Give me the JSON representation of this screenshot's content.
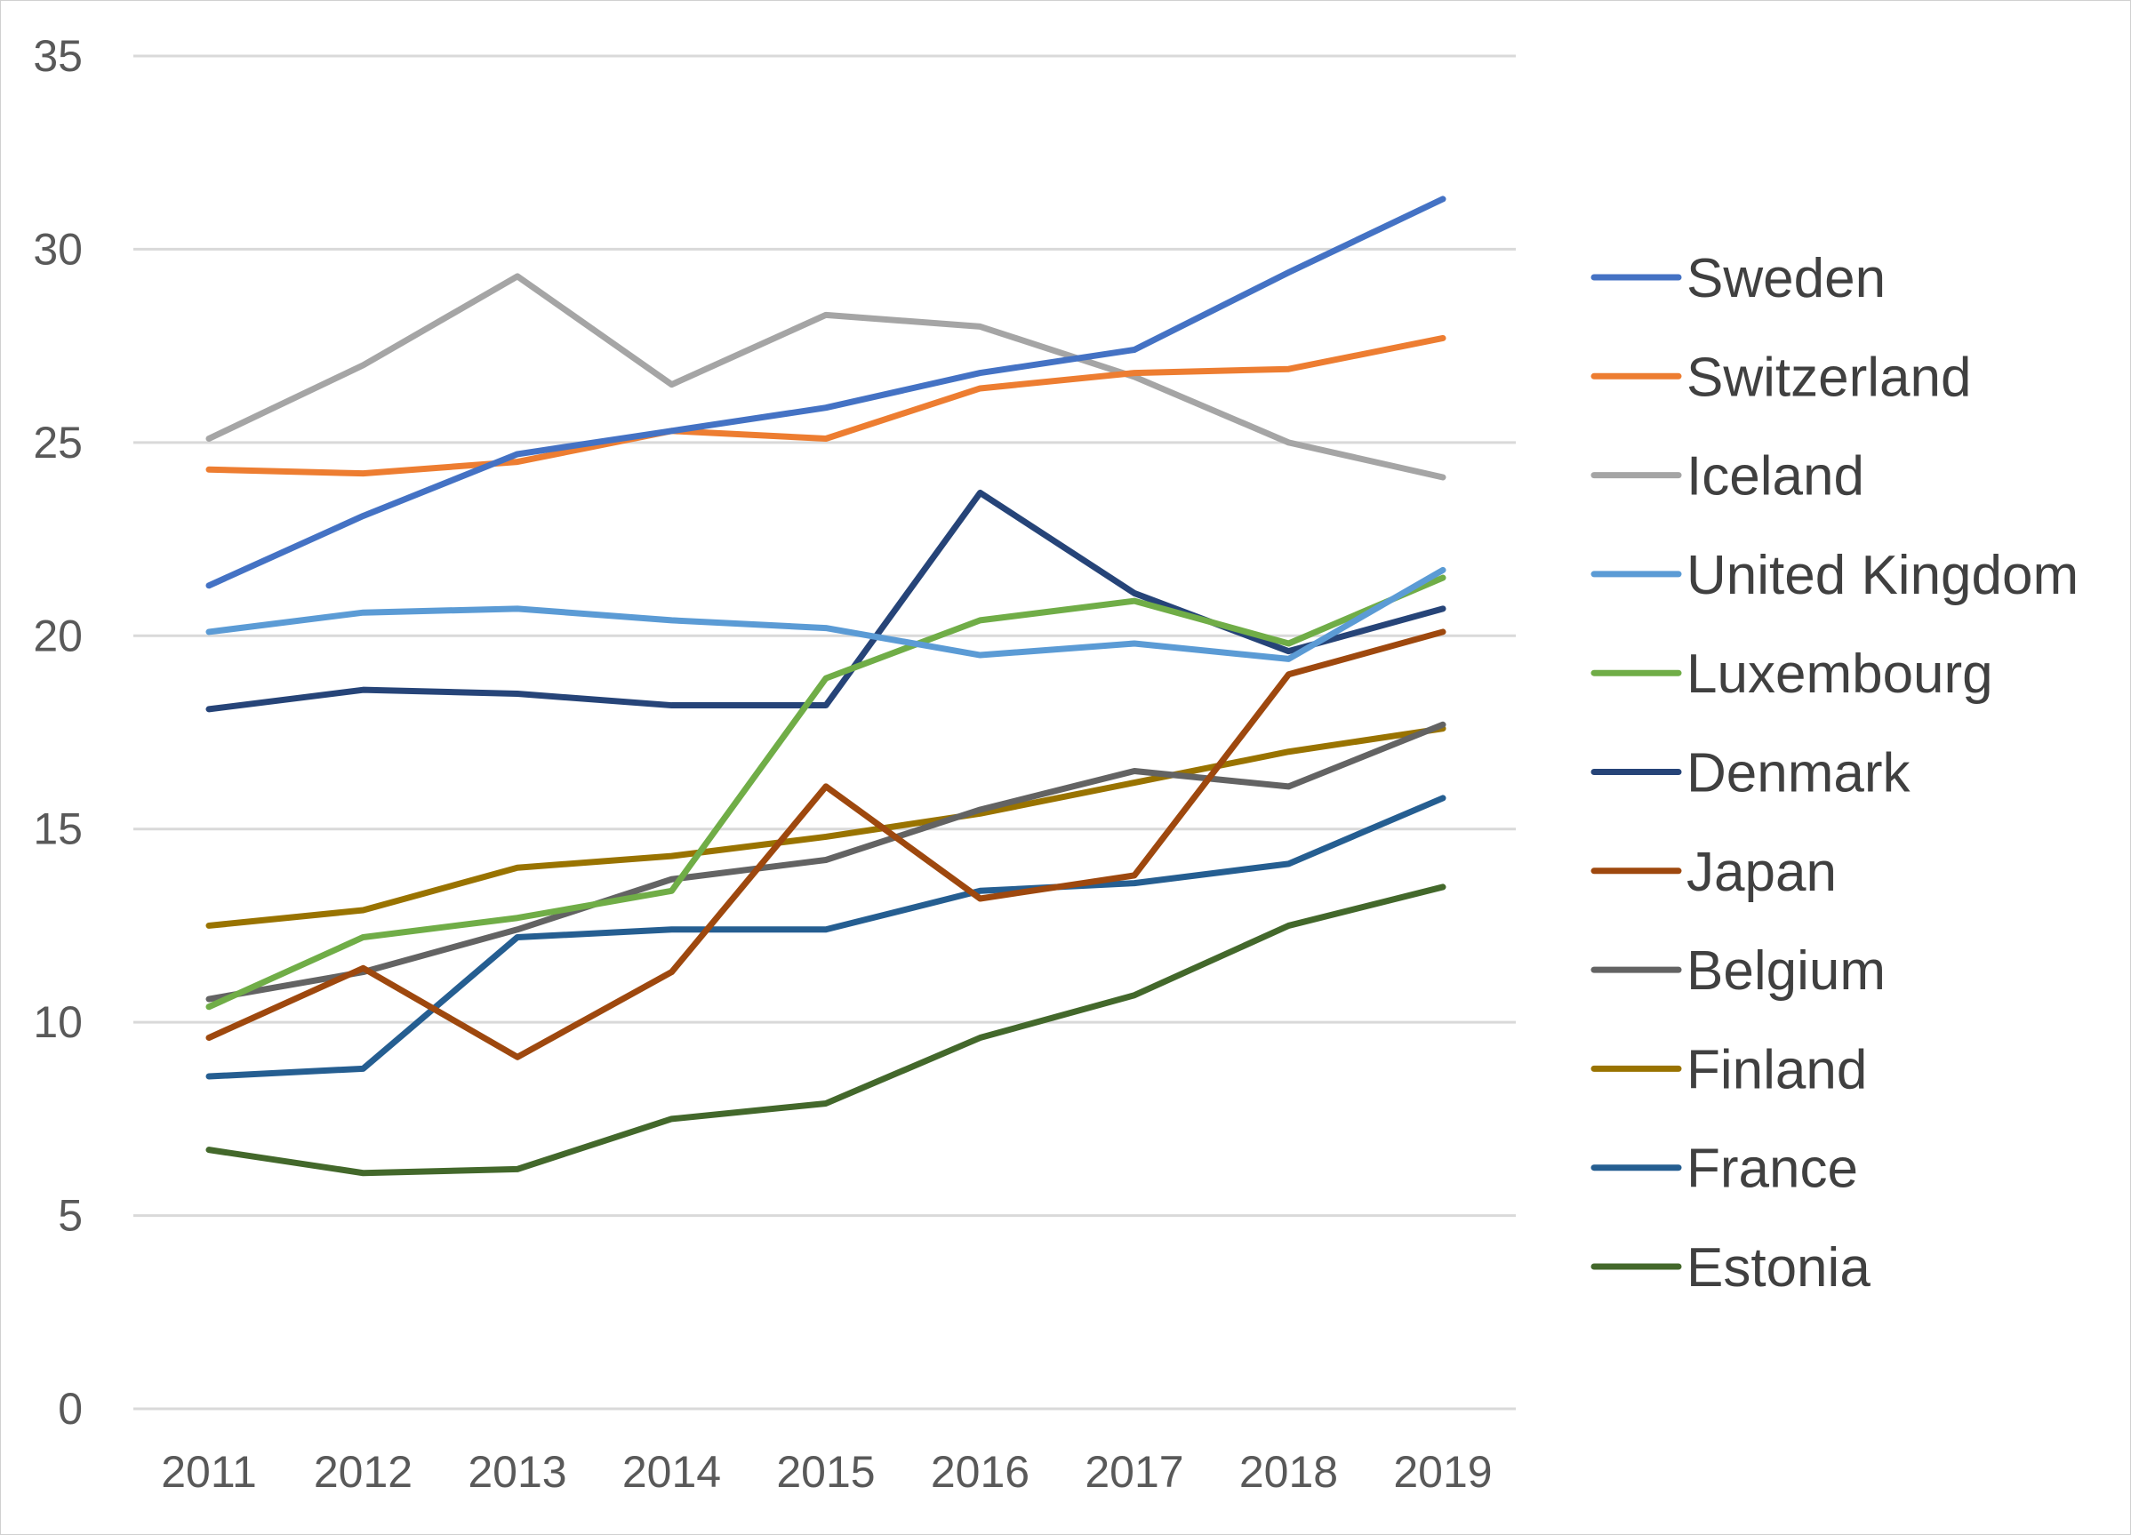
{
  "chart_data": {
    "type": "line",
    "title": "",
    "xlabel": "",
    "ylabel": "",
    "ylim": [
      0,
      35
    ],
    "yticks": [
      0,
      5,
      10,
      15,
      20,
      25,
      30,
      35
    ],
    "grid": true,
    "legend_position": "right",
    "categories": [
      "2011",
      "2012",
      "2013",
      "2014",
      "2015",
      "2016",
      "2017",
      "2018",
      "2019"
    ],
    "series": [
      {
        "name": "Sweden",
        "color": "#4472C4",
        "values": [
          21.3,
          23.1,
          24.7,
          25.3,
          25.9,
          26.8,
          27.4,
          29.4,
          31.3
        ]
      },
      {
        "name": "Switzerland",
        "color": "#ED7D31",
        "values": [
          24.3,
          24.2,
          24.5,
          25.3,
          25.1,
          26.4,
          26.8,
          26.9,
          27.7
        ]
      },
      {
        "name": "Iceland",
        "color": "#A5A5A5",
        "values": [
          25.1,
          27.0,
          29.3,
          26.5,
          28.3,
          28.0,
          26.7,
          25.0,
          24.1
        ]
      },
      {
        "name": "United Kingdom",
        "color": "#5B9BD5",
        "values": [
          20.1,
          20.6,
          20.7,
          20.4,
          20.2,
          19.5,
          19.8,
          19.4,
          21.7
        ]
      },
      {
        "name": "Luxembourg",
        "color": "#70AD47",
        "values": [
          10.4,
          12.2,
          12.7,
          13.4,
          18.9,
          20.4,
          20.9,
          19.8,
          21.5
        ]
      },
      {
        "name": "Denmark",
        "color": "#264478",
        "values": [
          18.1,
          18.6,
          18.5,
          18.2,
          18.2,
          23.7,
          21.1,
          19.6,
          20.7
        ]
      },
      {
        "name": "Japan",
        "color": "#9E480E",
        "values": [
          9.6,
          11.4,
          9.1,
          11.3,
          16.1,
          13.2,
          13.8,
          19.0,
          20.1
        ]
      },
      {
        "name": "Belgium",
        "color": "#636363",
        "values": [
          10.6,
          11.3,
          12.4,
          13.7,
          14.2,
          15.5,
          16.5,
          16.1,
          17.7
        ]
      },
      {
        "name": "Finland",
        "color": "#997300",
        "values": [
          12.5,
          12.9,
          14.0,
          14.3,
          14.8,
          15.4,
          16.2,
          17.0,
          17.6
        ]
      },
      {
        "name": "France",
        "color": "#255E91",
        "values": [
          8.6,
          8.8,
          12.2,
          12.4,
          12.4,
          13.4,
          13.6,
          14.1,
          15.8
        ]
      },
      {
        "name": "Estonia",
        "color": "#43682B",
        "values": [
          6.7,
          6.1,
          6.2,
          7.5,
          7.9,
          9.6,
          10.7,
          12.5,
          13.5
        ]
      }
    ]
  }
}
